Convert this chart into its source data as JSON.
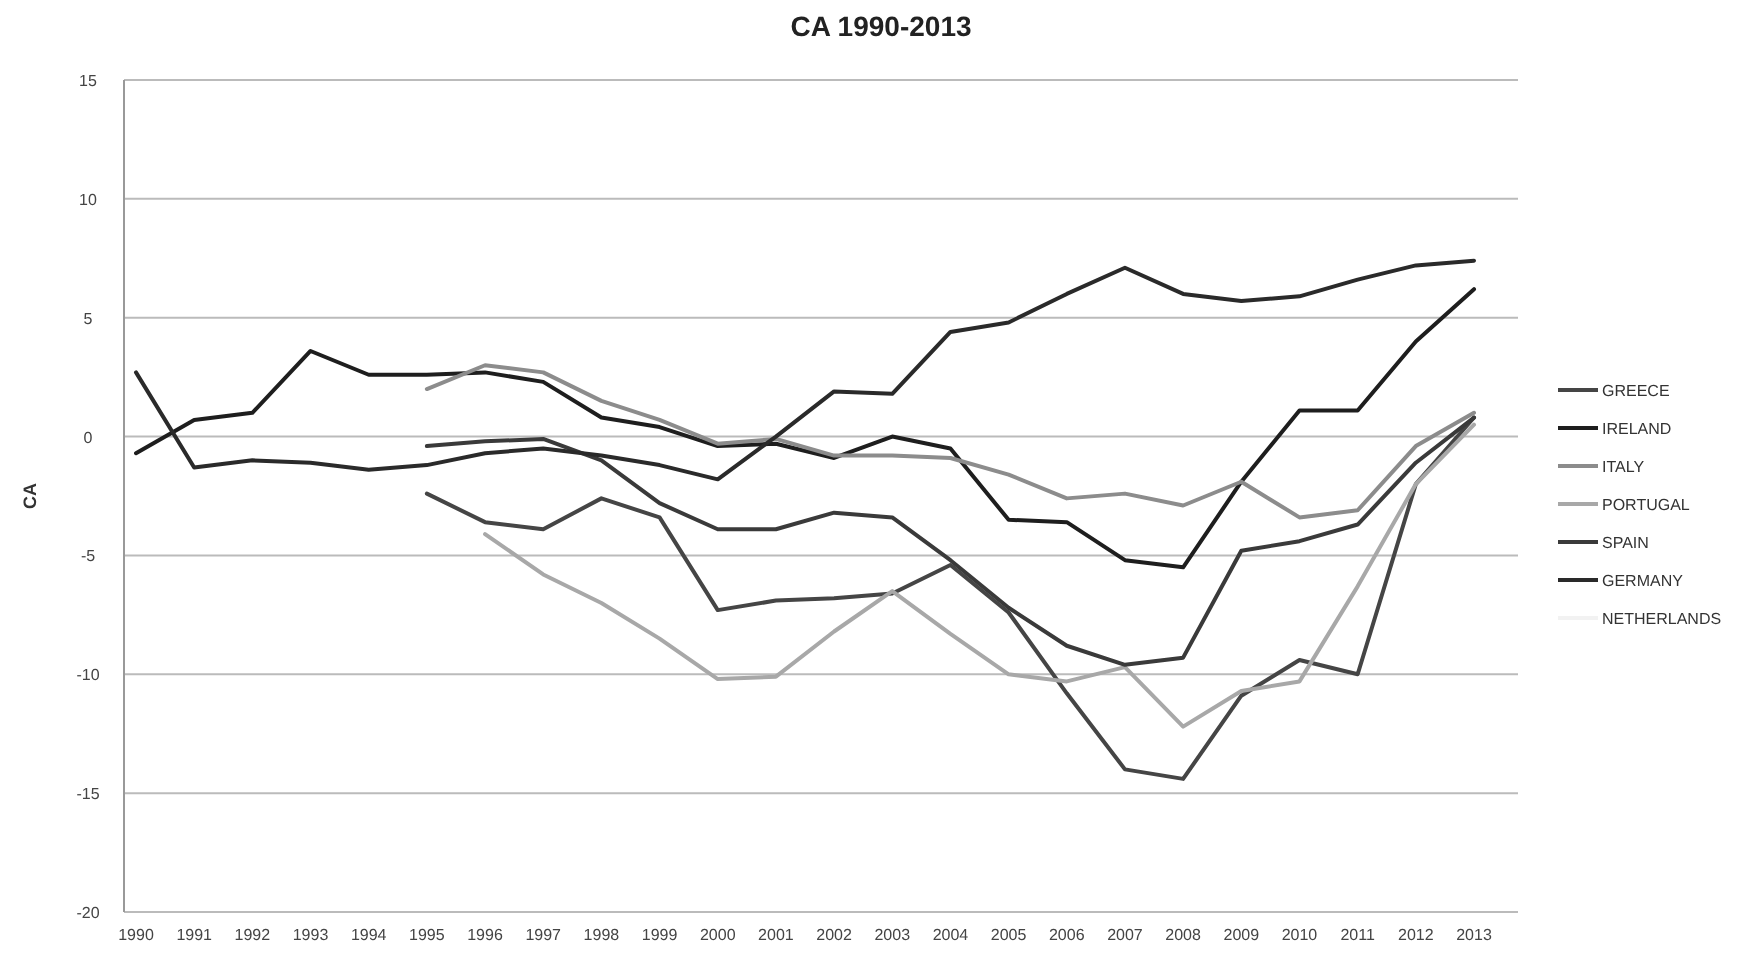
{
  "chart_data": {
    "type": "line",
    "title": "CA 1990-2013",
    "ylabel": "CA",
    "categories": [
      "1990",
      "1991",
      "1992",
      "1993",
      "1994",
      "1995",
      "1996",
      "1997",
      "1998",
      "1999",
      "2000",
      "2001",
      "2002",
      "2003",
      "2004",
      "2005",
      "2006",
      "2007",
      "2008",
      "2009",
      "2010",
      "2011",
      "2012",
      "2013"
    ],
    "ylim": [
      -20,
      15
    ],
    "yticks": [
      -20,
      -15,
      -10,
      -5,
      0,
      5,
      10,
      15
    ],
    "grid": "y",
    "legend": "right",
    "marker": "none",
    "line_style": "solid",
    "series": [
      {
        "name": "GREECE",
        "color": "#454545",
        "values": [
          null,
          null,
          null,
          null,
          null,
          -2.4,
          -3.6,
          -3.9,
          -2.6,
          -3.4,
          -7.3,
          -6.9,
          -6.8,
          -6.6,
          -5.4,
          -7.4,
          -10.8,
          -14.0,
          -14.4,
          -10.9,
          -9.4,
          -10.0,
          -2.0,
          0.8
        ]
      },
      {
        "name": "IRELAND",
        "color": "#1e1e1e",
        "values": [
          -0.7,
          0.7,
          1.0,
          3.6,
          2.6,
          2.6,
          2.7,
          2.3,
          0.8,
          0.4,
          -0.4,
          -0.3,
          -0.9,
          0.0,
          -0.5,
          -3.5,
          -3.6,
          -5.2,
          -5.5,
          -1.9,
          1.1,
          1.1,
          4.0,
          6.2
        ]
      },
      {
        "name": "ITALY",
        "color": "#8c8c8c",
        "values": [
          null,
          null,
          null,
          null,
          null,
          2.0,
          3.0,
          2.7,
          1.5,
          0.7,
          -0.3,
          -0.1,
          -0.8,
          -0.8,
          -0.9,
          -1.6,
          -2.6,
          -2.4,
          -2.9,
          -1.9,
          -3.4,
          -3.1,
          -0.4,
          1.0
        ]
      },
      {
        "name": "PORTUGAL",
        "color": "#a8a8a8",
        "values": [
          null,
          null,
          null,
          null,
          null,
          null,
          -4.1,
          -5.8,
          -7.0,
          -8.5,
          -10.2,
          -10.1,
          -8.2,
          -6.5,
          -8.3,
          -10.0,
          -10.3,
          -9.7,
          -12.2,
          -10.7,
          -10.3,
          -6.3,
          -2.0,
          0.5
        ]
      },
      {
        "name": "SPAIN",
        "color": "#3a3a3a",
        "values": [
          null,
          null,
          null,
          null,
          null,
          -0.4,
          -0.2,
          -0.1,
          -1.0,
          -2.8,
          -3.9,
          -3.9,
          -3.2,
          -3.4,
          -5.2,
          -7.2,
          -8.8,
          -9.6,
          -9.3,
          -4.8,
          -4.4,
          -3.7,
          -1.1,
          0.8
        ]
      },
      {
        "name": "GERMANY",
        "color": "#2a2a2a",
        "values": [
          2.7,
          -1.3,
          -1.0,
          -1.1,
          -1.4,
          -1.2,
          -0.7,
          -0.5,
          -0.8,
          -1.2,
          -1.8,
          0.0,
          1.9,
          1.8,
          4.4,
          4.8,
          6.0,
          7.1,
          6.0,
          5.7,
          5.9,
          6.6,
          7.2,
          7.4
        ]
      },
      {
        "name": "NETHERLANDS",
        "color": "#f2f2f2",
        "values": [
          null,
          null,
          null,
          null,
          null,
          null,
          null,
          null,
          null,
          null,
          null,
          null,
          null,
          null,
          null,
          null,
          null,
          null,
          null,
          null,
          null,
          null,
          null,
          null
        ]
      }
    ]
  }
}
